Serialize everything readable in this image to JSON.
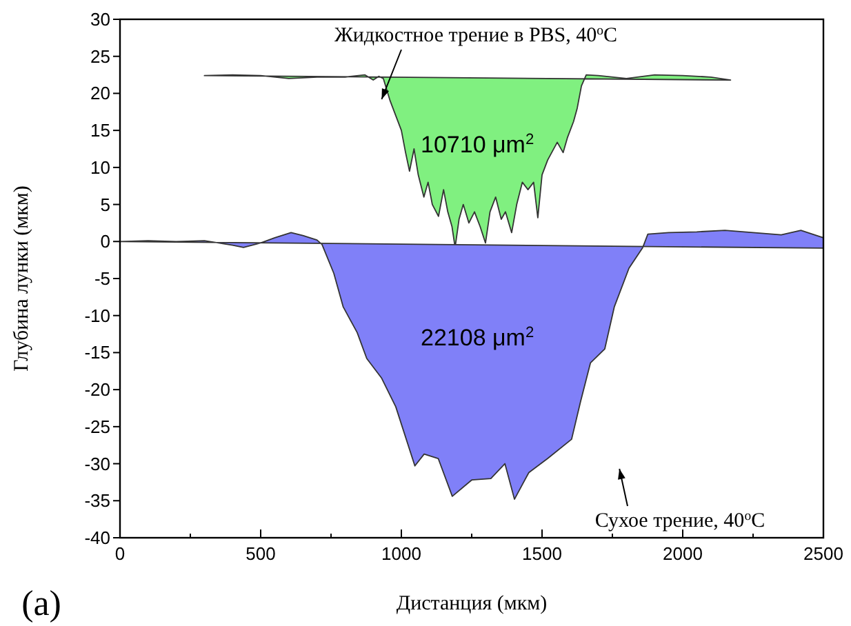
{
  "chart_data": {
    "type": "area",
    "xlabel": "Дистанция (мкм)",
    "ylabel": "Глубина лунки (мкм)",
    "xlim": [
      0,
      2500
    ],
    "ylim": [
      -40,
      30
    ],
    "xticks": [
      0,
      {
        "value": 250,
        "label": null
      },
      500,
      {
        "value": 750,
        "label": null
      },
      1000,
      {
        "value": 1250,
        "label": null
      },
      1500,
      {
        "value": 1750,
        "label": null
      },
      2000,
      {
        "value": 2250,
        "label": null
      },
      2500
    ],
    "yticks": [
      -40,
      -35,
      -30,
      -25,
      -20,
      -15,
      -10,
      -5,
      0,
      5,
      10,
      15,
      20,
      25,
      30
    ],
    "grid": false,
    "series": [
      {
        "color": "#80f080",
        "x": [
          300,
          400,
          500,
          600,
          700,
          800,
          870,
          900,
          920,
          936,
          960,
          980,
          1000,
          1015,
          1029,
          1045,
          1060,
          1080,
          1095,
          1110,
          1132,
          1150,
          1165,
          1180,
          1191,
          1205,
          1220,
          1240,
          1260,
          1280,
          1299,
          1315,
          1335,
          1355,
          1370,
          1392,
          1410,
          1430,
          1450,
          1470,
          1485,
          1500,
          1520,
          1554,
          1575,
          1590,
          1612,
          1625,
          1640,
          1657,
          1700,
          1800,
          1900,
          2000,
          2100,
          2170
        ],
        "values": [
          22.4,
          22.5,
          22.4,
          22.0,
          22.2,
          22.2,
          22.5,
          21.8,
          22.3,
          22,
          19,
          17,
          15,
          12,
          9.5,
          12.5,
          9,
          6,
          8,
          5,
          3.4,
          7,
          4,
          2,
          -0.8,
          3,
          5,
          2.5,
          4,
          2,
          -0.2,
          4,
          6,
          3,
          4,
          1.2,
          5,
          8,
          7,
          8,
          3.2,
          9,
          11,
          13.4,
          12,
          14,
          16.2,
          18,
          21,
          22.5,
          22.4,
          22,
          22.5,
          22.4,
          22.2,
          21.8
        ]
      },
      {
        "color": "#8080f8",
        "x": [
          0,
          100,
          200,
          300,
          400,
          439,
          500,
          550,
          608,
          650,
          700,
          718,
          760,
          793,
          843,
          877,
          929,
          980,
          1048,
          1081,
          1131,
          1181,
          1250,
          1318,
          1368,
          1402,
          1453,
          1520,
          1605,
          1637,
          1672,
          1723,
          1757,
          1809,
          1858,
          1876,
          1950,
          2050,
          2150,
          2250,
          2350,
          2420,
          2500,
          2500
        ],
        "values": [
          0,
          0.1,
          0,
          0.1,
          -0.5,
          -0.8,
          -0.2,
          0.5,
          1.2,
          0.8,
          0.2,
          -0.4,
          -4.3,
          -8.8,
          -12.3,
          -15.8,
          -18.4,
          -22.3,
          -30.3,
          -28.7,
          -29.3,
          -34.4,
          -32.2,
          -32,
          -30,
          -34.8,
          -31.2,
          -29.3,
          -26.7,
          -21.6,
          -16.4,
          -14.5,
          -8.8,
          -3.6,
          -0.8,
          1.0,
          1.2,
          1.3,
          1.5,
          1.2,
          0.9,
          1.5,
          0.5,
          -0.9
        ]
      }
    ],
    "annotations": [
      "10710 μm$^{2}$",
      "22108 μm$^{2}$",
      "Жидкостное трение в PBS, 40$^{o}$C",
      "Сухое трение, 40$^{o}$C",
      "(a)"
    ]
  }
}
